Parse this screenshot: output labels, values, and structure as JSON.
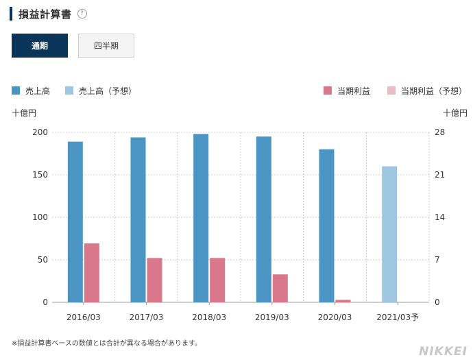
{
  "header": {
    "title": "損益計算書",
    "help": "?"
  },
  "tabs": [
    {
      "label": "通期",
      "active": true
    },
    {
      "label": "四半期",
      "active": false
    }
  ],
  "colors": {
    "sales": "#4a95c4",
    "sales_forecast": "#9fc6e0",
    "profit": "#d9788b",
    "profit_forecast": "#ecbcc5"
  },
  "legend": [
    {
      "label": "売上高",
      "color": "#4a95c4"
    },
    {
      "label": "売上高（予想）",
      "color": "#9fc6e0"
    },
    {
      "label": "当期利益",
      "color": "#d9788b"
    },
    {
      "label": "当期利益（予想）",
      "color": "#ecbcc5"
    }
  ],
  "chart_data": {
    "type": "bar",
    "categories": [
      "2016/03",
      "2017/03",
      "2018/03",
      "2019/03",
      "2020/03",
      "2021/03予"
    ],
    "series": [
      {
        "name": "売上高",
        "axis": "left",
        "values": [
          189,
          194,
          198,
          195,
          180,
          null
        ]
      },
      {
        "name": "売上高（予想）",
        "axis": "left",
        "values": [
          null,
          null,
          null,
          null,
          null,
          160
        ]
      },
      {
        "name": "当期利益",
        "axis": "right",
        "values": [
          9.7,
          7.3,
          7.3,
          4.6,
          0.4,
          null
        ]
      },
      {
        "name": "当期利益（予想）",
        "axis": "right",
        "values": [
          null,
          null,
          null,
          null,
          null,
          null
        ]
      }
    ],
    "y_left": {
      "label": "十億円",
      "ylim": [
        0,
        200
      ],
      "ticks": [
        0,
        50,
        100,
        150,
        200
      ]
    },
    "y_right": {
      "label": "十億円",
      "ylim": [
        0,
        28
      ],
      "ticks": [
        0,
        7,
        14,
        21,
        28
      ]
    },
    "grid": true
  },
  "footnote": "※損益計算書ベースの数値とは合計が異なる場合があります。",
  "logo": "NIKKEI"
}
